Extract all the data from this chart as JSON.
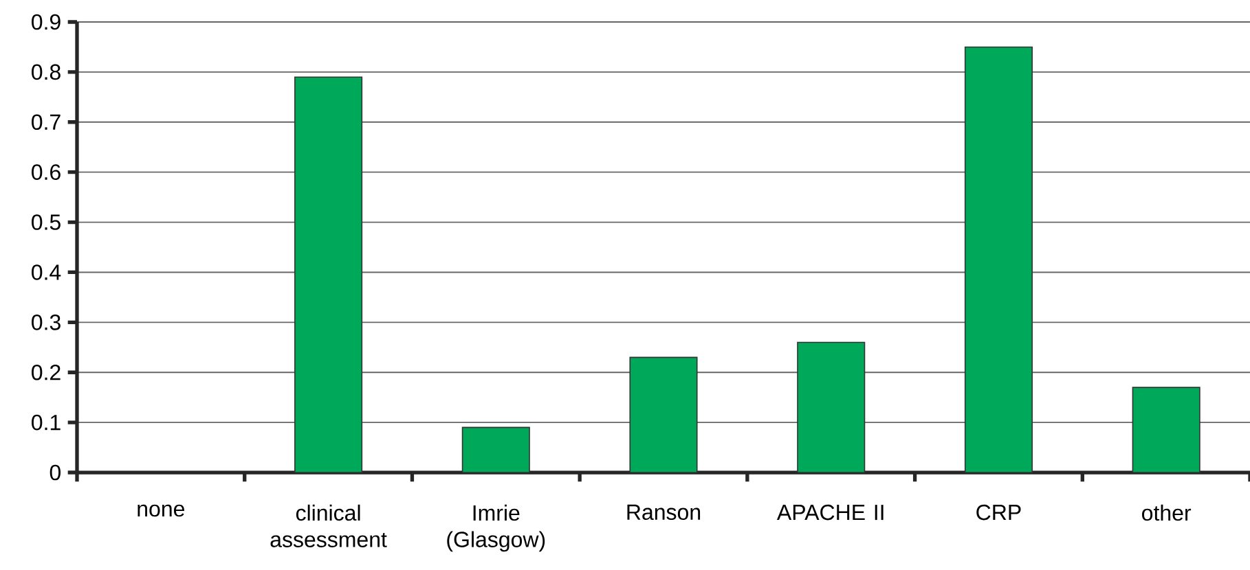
{
  "chart_data": {
    "type": "bar",
    "categories": [
      "none",
      "clinical assessment",
      "Imrie (Glasgow)",
      "Ranson",
      "APACHE II",
      "CRP",
      "other"
    ],
    "values": [
      0,
      0.79,
      0.09,
      0.23,
      0.26,
      0.85,
      0.17
    ],
    "color": "#00a859",
    "ylim": [
      0,
      0.9
    ],
    "yticks": [
      0,
      0.1,
      0.2,
      0.3,
      0.4,
      0.5,
      0.6,
      0.7,
      0.8,
      0.9
    ],
    "grid": "y"
  }
}
